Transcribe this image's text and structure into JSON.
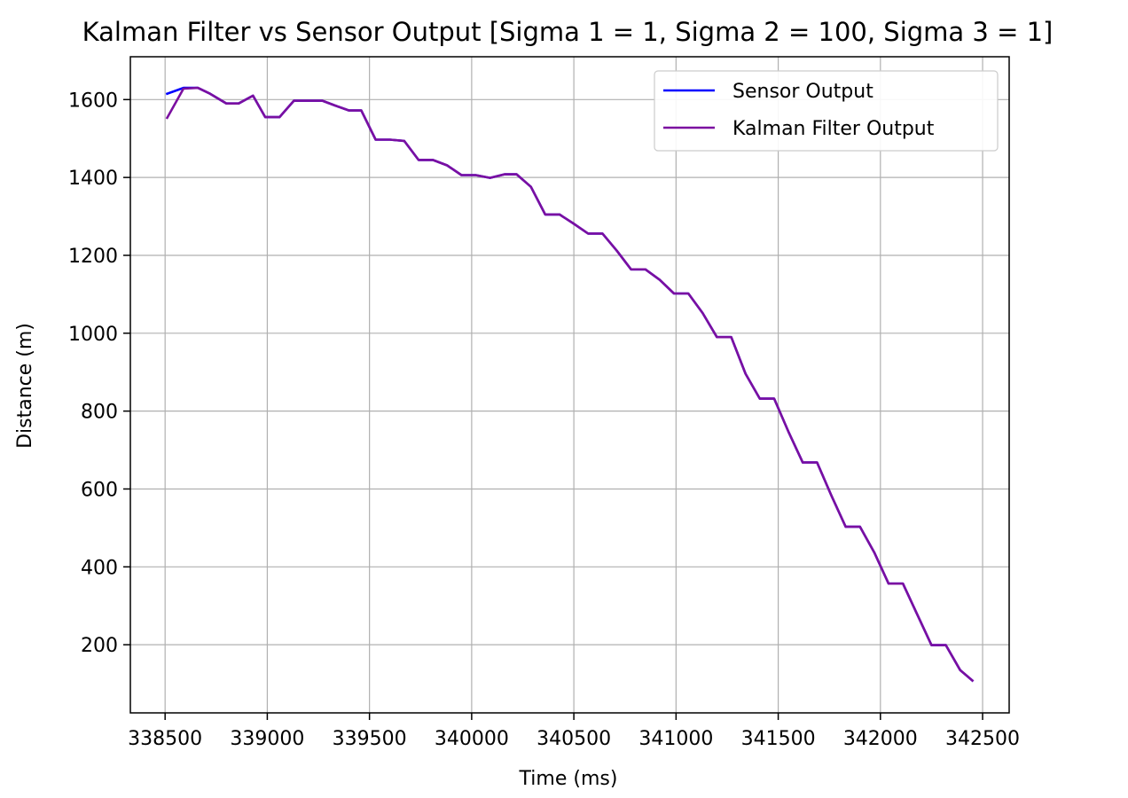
{
  "chart_data": {
    "type": "line",
    "title": "Kalman Filter vs Sensor Output [Sigma 1 = 1, Sigma 2 = 100, Sigma 3 = 1]",
    "xlabel": "Time (ms)",
    "ylabel": "Distance (m)",
    "xlim": [
      338330,
      342630
    ],
    "ylim": [
      25,
      1710
    ],
    "xticks": [
      338500,
      339000,
      339500,
      340000,
      340500,
      341000,
      341500,
      342000,
      342500
    ],
    "yticks": [
      200,
      400,
      600,
      800,
      1000,
      1200,
      1400,
      1600
    ],
    "grid": true,
    "legend_position": "top-right",
    "series": [
      {
        "name": "Sensor Output",
        "color": "#0000ff",
        "x": [
          338510,
          338590,
          338660,
          338720,
          338800,
          338860,
          338930,
          338990,
          339060,
          339130,
          339200,
          339270,
          339330,
          339400,
          339460,
          339530,
          339600,
          339670,
          339740,
          339810,
          339880,
          339950,
          340020,
          340090,
          340160,
          340220,
          340290,
          340360,
          340430,
          340500,
          340570,
          340640,
          340710,
          340780,
          340850,
          340920,
          340990,
          341060,
          341130,
          341200,
          341270,
          341340,
          341410,
          341480,
          341550,
          341620,
          341690,
          341760,
          341830,
          341900,
          341970,
          342040,
          342110,
          342180,
          342250,
          342320,
          342390,
          342450
        ],
        "y": [
          1615,
          1630,
          1630,
          1615,
          1590,
          1590,
          1610,
          1555,
          1555,
          1597,
          1597,
          1597,
          1585,
          1572,
          1572,
          1497,
          1497,
          1494,
          1445,
          1445,
          1431,
          1406,
          1406,
          1399,
          1408,
          1408,
          1376,
          1305,
          1305,
          1281,
          1256,
          1256,
          1212,
          1164,
          1164,
          1137,
          1102,
          1102,
          1052,
          990,
          990,
          896,
          832,
          832,
          747,
          668,
          668,
          583,
          503,
          503,
          437,
          357,
          357,
          278,
          199,
          199,
          135,
          108
        ]
      },
      {
        "name": "Kalman Filter Output",
        "color": "#7b0fa0",
        "x": [
          338510,
          338590,
          338660,
          338720,
          338800,
          338860,
          338930,
          338990,
          339060,
          339130,
          339200,
          339270,
          339330,
          339400,
          339460,
          339530,
          339600,
          339670,
          339740,
          339810,
          339880,
          339950,
          340020,
          340090,
          340160,
          340220,
          340290,
          340360,
          340430,
          340500,
          340570,
          340640,
          340710,
          340780,
          340850,
          340920,
          340990,
          341060,
          341130,
          341200,
          341270,
          341340,
          341410,
          341480,
          341550,
          341620,
          341690,
          341760,
          341830,
          341900,
          341970,
          342040,
          342110,
          342180,
          342250,
          342320,
          342390,
          342450
        ],
        "y": [
          1553,
          1628,
          1630,
          1615,
          1590,
          1590,
          1610,
          1555,
          1555,
          1597,
          1597,
          1597,
          1585,
          1572,
          1572,
          1497,
          1497,
          1494,
          1445,
          1445,
          1431,
          1406,
          1406,
          1399,
          1408,
          1408,
          1376,
          1305,
          1305,
          1281,
          1256,
          1256,
          1212,
          1164,
          1164,
          1137,
          1102,
          1102,
          1052,
          990,
          990,
          896,
          832,
          832,
          747,
          668,
          668,
          583,
          503,
          503,
          437,
          357,
          357,
          278,
          199,
          199,
          135,
          108
        ]
      }
    ]
  }
}
